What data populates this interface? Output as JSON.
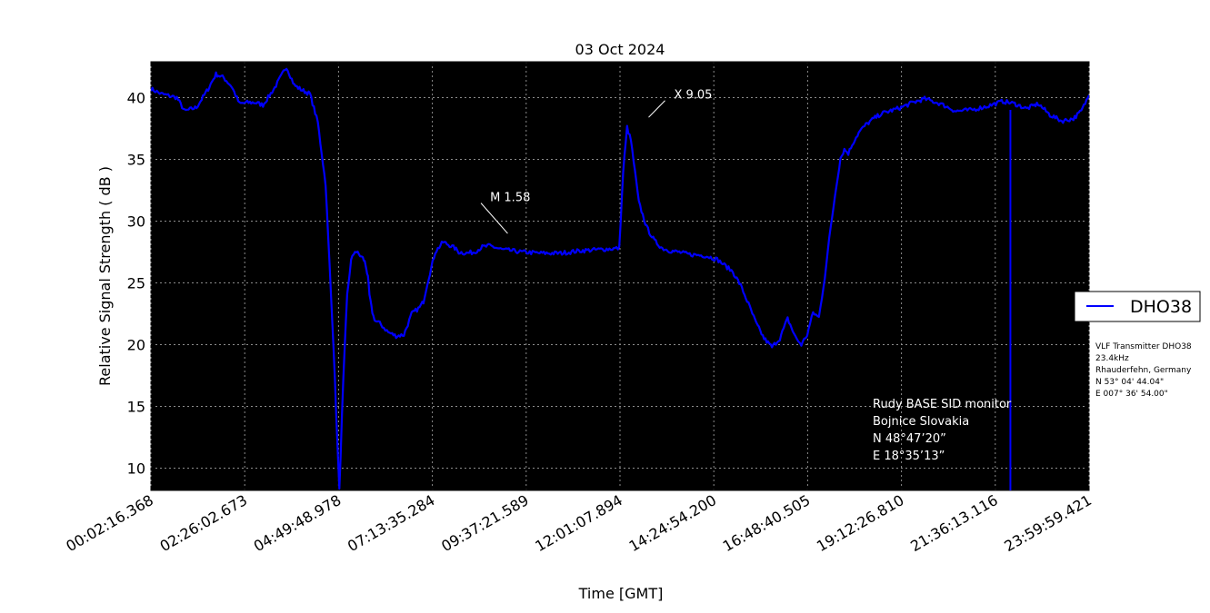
{
  "chart_data": {
    "type": "line",
    "title": "03 Oct 2024",
    "xlabel": "Time [GMT]",
    "ylabel": "Relative Signal Strength ( dB )",
    "xlim": [
      0.0378,
      23.9999
    ],
    "ylim": [
      8.2,
      42.9
    ],
    "yticks": [
      10,
      15,
      20,
      25,
      30,
      35,
      40
    ],
    "xticks": [
      {
        "value": 0.0378,
        "label": "00:02:16.368"
      },
      {
        "value": 2.4341,
        "label": "02:26:02.673"
      },
      {
        "value": 4.8303,
        "label": "04:49:48.978"
      },
      {
        "value": 7.2265,
        "label": "07:13:35.284"
      },
      {
        "value": 9.6227,
        "label": "09:37:21.589"
      },
      {
        "value": 12.0189,
        "label": "12:01:07.894"
      },
      {
        "value": 14.4151,
        "label": "14:24:54.200"
      },
      {
        "value": 16.8113,
        "label": "16:48:40.505"
      },
      {
        "value": 19.2075,
        "label": "19:12:26.810"
      },
      {
        "value": 21.6037,
        "label": "21:36:13.116"
      },
      {
        "value": 23.9999,
        "label": "23:59:59.421"
      }
    ],
    "grid": true,
    "legend_position": "right",
    "series": [
      {
        "name": "DHO38",
        "color": "#0000ff",
        "x": [
          0.04,
          0.3,
          0.7,
          0.9,
          1.2,
          1.5,
          1.7,
          1.9,
          2.1,
          2.3,
          2.5,
          2.7,
          2.9,
          3.2,
          3.5,
          3.7,
          3.9,
          4.1,
          4.3,
          4.5,
          4.7,
          4.85,
          4.95,
          5.05,
          5.15,
          5.25,
          5.35,
          5.45,
          5.5,
          5.54,
          5.58,
          5.62,
          5.67,
          5.72,
          5.78,
          5.85,
          5.95,
          6.1,
          6.3,
          6.5,
          6.7,
          6.9,
          7.0,
          7.1,
          7.3,
          7.5,
          7.7,
          7.8,
          7.9,
          8.1,
          8.3,
          8.5,
          8.7,
          9.0,
          9.5,
          10.0,
          10.5,
          11.0,
          11.5,
          12.0,
          12.1,
          12.2,
          12.3,
          12.4,
          12.5,
          12.7,
          12.9,
          13.1,
          13.3,
          13.5,
          13.8,
          14.2,
          14.5,
          14.9,
          15.1,
          15.3,
          15.5,
          15.7,
          15.9,
          16.1,
          16.3,
          16.5,
          16.65,
          16.8,
          16.95,
          17.1,
          17.25,
          17.4,
          17.55,
          17.65,
          17.75,
          17.85,
          17.95,
          18.05,
          18.15,
          18.3,
          18.5,
          18.7,
          18.9,
          19.2,
          19.5,
          19.8,
          20.2,
          20.6,
          21.0,
          21.4,
          21.8,
          22.1,
          22.4,
          22.7,
          23.0,
          23.3,
          23.6,
          23.8,
          24.0
        ],
        "y": [
          40.7,
          40.3,
          40.0,
          38.9,
          39.2,
          40.7,
          41.9,
          41.6,
          40.9,
          39.5,
          39.6,
          39.6,
          39.4,
          40.8,
          42.5,
          41.0,
          40.6,
          40.3,
          38.0,
          33.0,
          20.0,
          8.2,
          17.0,
          24.0,
          26.8,
          27.6,
          27.3,
          27.0,
          26.7,
          26.2,
          25.4,
          24.0,
          23.0,
          22.3,
          21.9,
          21.8,
          21.5,
          21.0,
          20.7,
          20.8,
          22.5,
          23.0,
          23.5,
          25.0,
          27.5,
          28.3,
          28.0,
          27.8,
          27.5,
          27.4,
          27.5,
          27.9,
          28.0,
          27.7,
          27.5,
          27.4,
          27.4,
          27.6,
          27.7,
          27.8,
          34.0,
          37.6,
          36.5,
          34.0,
          31.5,
          29.5,
          28.4,
          27.8,
          27.6,
          27.5,
          27.3,
          27.2,
          26.9,
          25.9,
          24.8,
          23.3,
          21.7,
          20.5,
          19.8,
          20.5,
          22.1,
          20.6,
          20.0,
          20.8,
          22.6,
          22.2,
          25.5,
          29.5,
          33.0,
          35.1,
          35.8,
          35.5,
          36.2,
          36.8,
          37.3,
          37.8,
          38.3,
          38.7,
          38.9,
          39.2,
          39.6,
          39.9,
          39.5,
          38.9,
          39.0,
          39.3,
          39.7,
          39.5,
          39.1,
          39.5,
          38.6,
          38.1,
          38.3,
          38.9,
          40.2
        ]
      }
    ],
    "spikes": [
      {
        "x": 21.99,
        "y_low": 8.2,
        "y_high": 39.0
      }
    ],
    "annotations": [
      {
        "text": "M 1.58",
        "x": 8.7,
        "y": 31.9
      },
      {
        "text": "X 9.05",
        "x": 13.4,
        "y": 40.2
      }
    ],
    "station_info": [
      "Rudy BASE SID monitor",
      "Bojnice Slovakia",
      "N 48°47’20”",
      "E 18°35’13”"
    ],
    "transmitter_info": [
      "VLF Transmitter DHO38",
      "23.4kHz",
      "Rhauderfehn, Germany",
      "N 53° 04' 44.04\"",
      "E 007° 36' 54.00\""
    ]
  }
}
